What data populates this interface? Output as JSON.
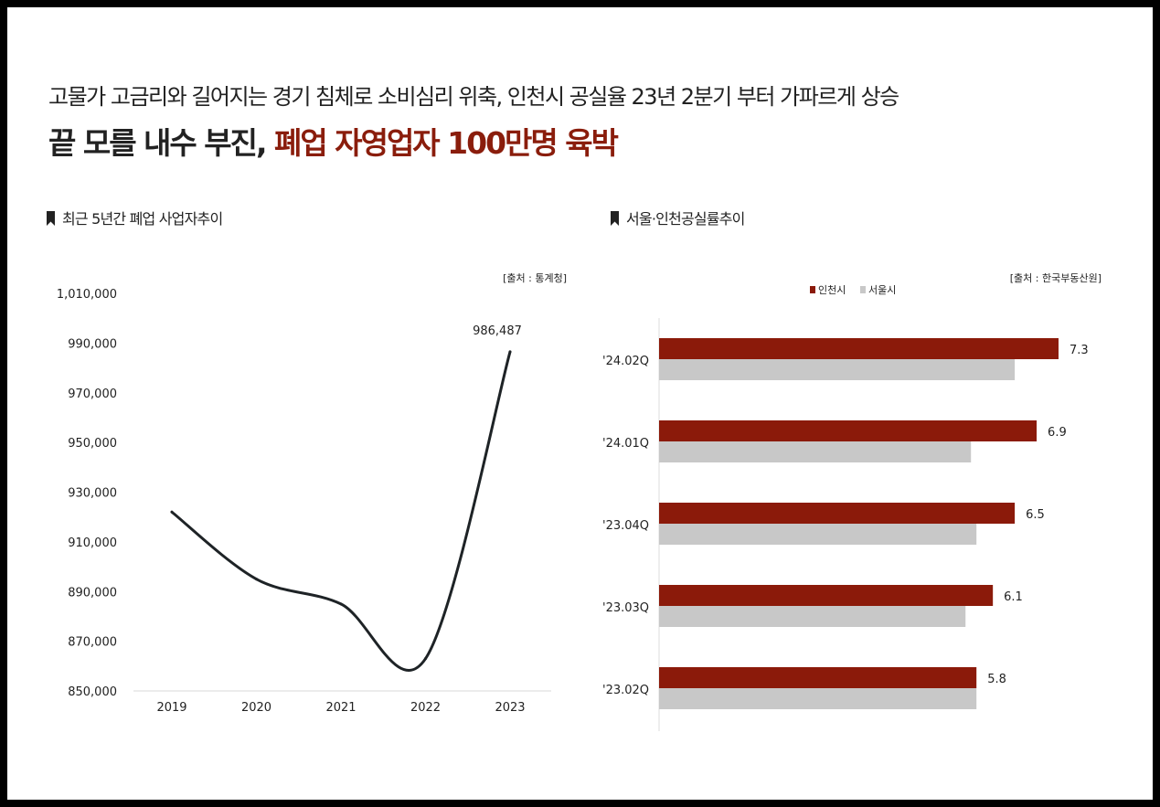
{
  "header": {
    "subtitle": "고물가 고금리와 길어지는 경기 침체로 소비심리 위축, 인천시 공실율 23년 2분기 부터 가파르게 상승",
    "headline_part1": "끝 모를 내수 부진, ",
    "headline_part2": "폐업 자영업자 100만명 육박"
  },
  "colors": {
    "accent": "#8a1d0c",
    "incheon": "#8b1a0a",
    "seoul": "#c8c8c8",
    "line": "#1e2326"
  },
  "chart_data": [
    {
      "type": "line",
      "title": "최근 5년간 폐업 사업자추이",
      "source": "[출처 : 통계청]",
      "x": [
        "2019",
        "2020",
        "2021",
        "2022",
        "2023"
      ],
      "series": [
        {
          "values": [
            922000,
            895000,
            885000,
            863000,
            986487
          ]
        }
      ],
      "ylim": [
        850000,
        1010000
      ],
      "yticks": [
        850000,
        870000,
        890000,
        910000,
        930000,
        950000,
        970000,
        990000,
        1010000
      ],
      "ytick_labels": [
        "850,000",
        "870,000",
        "890,000",
        "910,000",
        "930,000",
        "950,000",
        "970,000",
        "990,000",
        "1,010,000"
      ],
      "annotations": [
        {
          "x": "2023",
          "text": "986,487"
        }
      ],
      "grid": false,
      "xlabel": "",
      "ylabel": ""
    },
    {
      "type": "bar",
      "orientation": "horizontal",
      "title": "서울·인천공실률추이",
      "source": "[출처 : 한국부동산원]",
      "categories": [
        "'24.02Q",
        "'24.01Q",
        "'23.04Q",
        "'23.03Q",
        "'23.02Q"
      ],
      "series": [
        {
          "name": "인천시",
          "values": [
            7.3,
            6.9,
            6.5,
            6.1,
            5.8
          ]
        },
        {
          "name": "서울시",
          "values": [
            6.5,
            5.7,
            5.8,
            5.6,
            5.8
          ]
        }
      ],
      "data_labels": [
        "7.3",
        "6.9",
        "6.5",
        "6.1",
        "5.8"
      ],
      "xlim": [
        0,
        7.3
      ],
      "legend": "top-center",
      "grid": false,
      "xlabel": "",
      "ylabel": ""
    }
  ]
}
